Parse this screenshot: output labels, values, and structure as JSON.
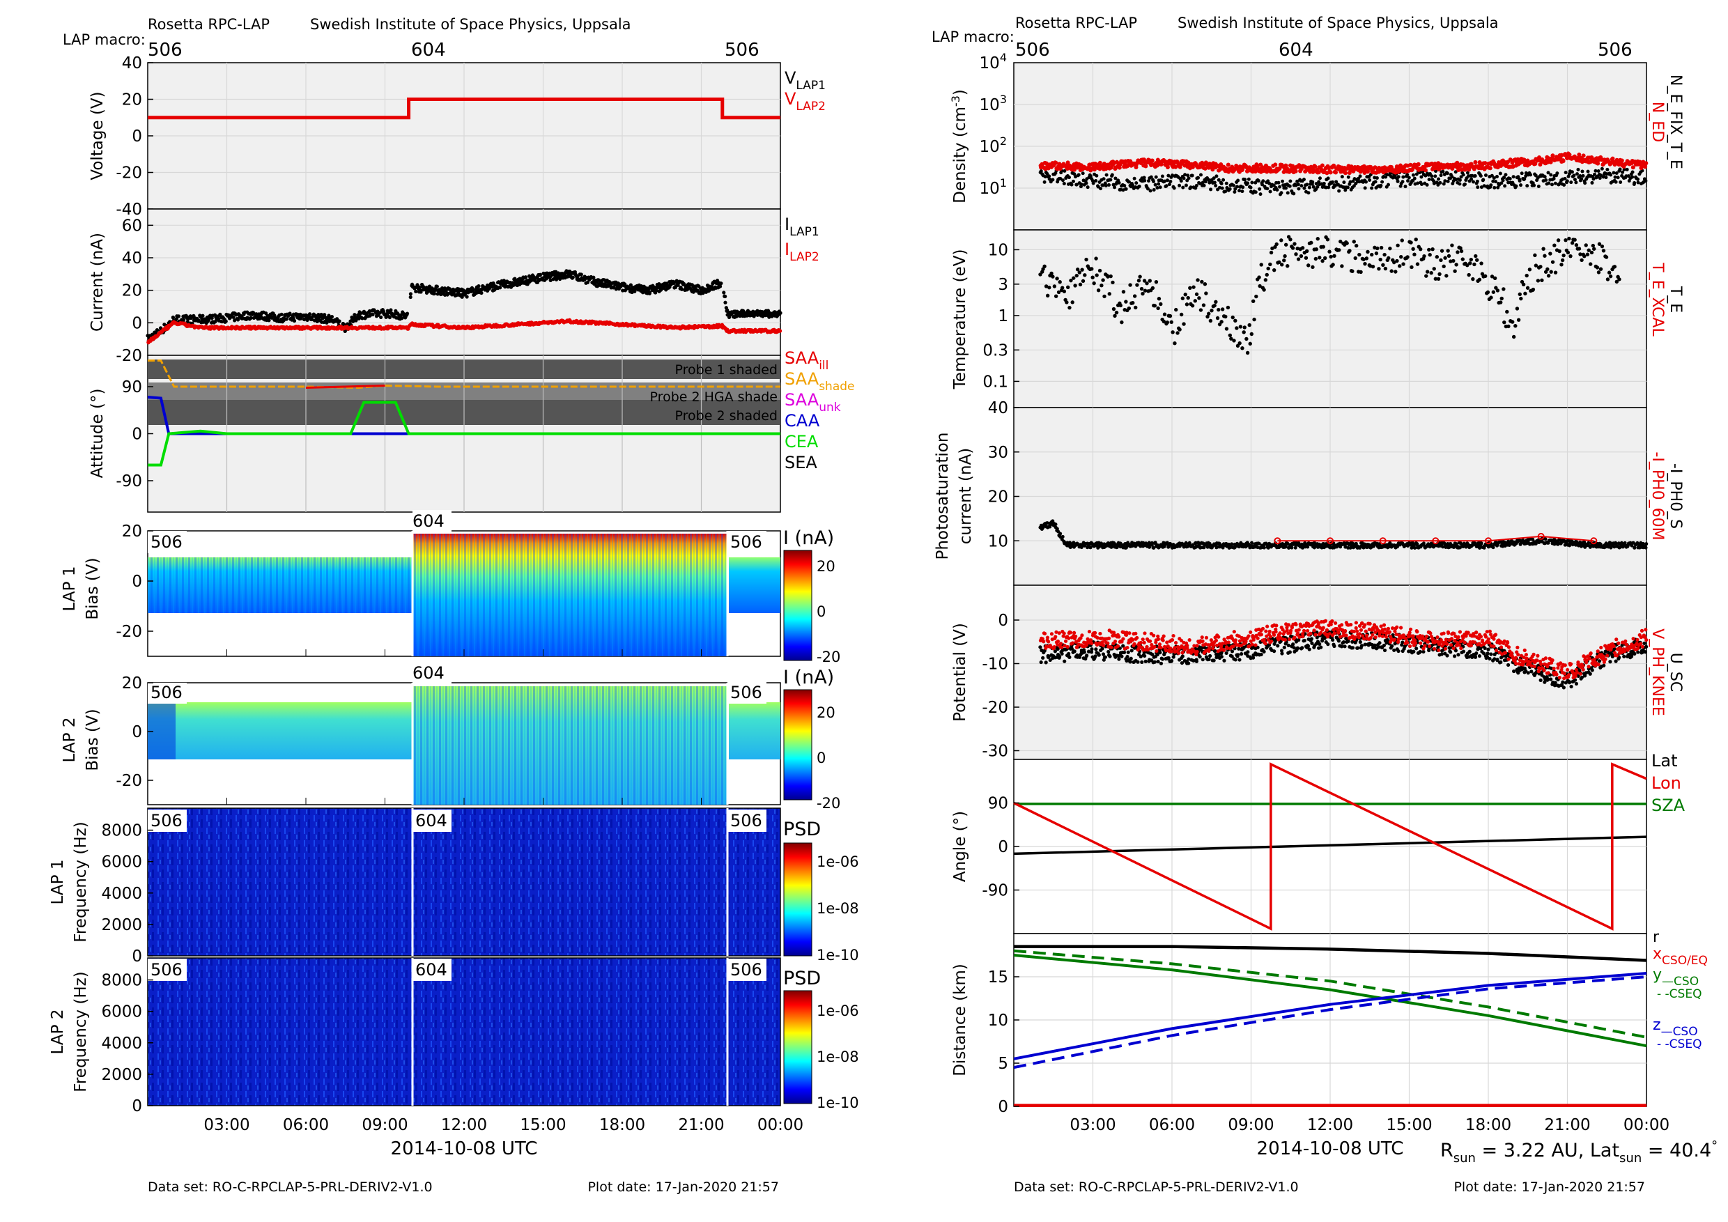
{
  "header": {
    "mission": "Rosetta RPC-LAP",
    "institute": "Swedish Institute of Space Physics, Uppsala",
    "macro_label": "LAP macro:",
    "macros": [
      "506",
      "604",
      "506"
    ]
  },
  "colors": {
    "panel_bg": "#f0f0f0",
    "grid": "#d8d8d8",
    "red": "#e60000",
    "black": "#000000",
    "orange": "#f0a000",
    "magenta": "#dd00dd",
    "blue": "#0000d0",
    "green": "#00dd00",
    "dark_green": "#007a00",
    "shade_dark": "#555555",
    "shade_mid": "#808080"
  },
  "left": {
    "time_ticks": [
      "03:00",
      "06:00",
      "09:00",
      "12:00",
      "15:00",
      "18:00",
      "21:00",
      "00:00"
    ],
    "xlabel": "2014-10-08 UTC",
    "footer_dataset": "Data set: RO-C-RPCLAP-5-PRL-DERIV2-V1.0",
    "footer_plotdate": "Plot date: 17-Jan-2020 21:57",
    "shade_labels": [
      "Probe 1 shaded",
      "Probe 2 HGA shade",
      "Probe 2 shaded"
    ],
    "colorbar_ticks_current": [
      "20",
      "0",
      "-20"
    ],
    "colorbar_ticks_psd": [
      "1e-06",
      "1e-08",
      "1e-10"
    ]
  },
  "right": {
    "time_ticks": [
      "03:00",
      "06:00",
      "09:00",
      "12:00",
      "15:00",
      "18:00",
      "21:00",
      "00:00"
    ],
    "xlabel": "2014-10-08 UTC",
    "footer_dataset": "Data set: RO-C-RPCLAP-5-PRL-DERIV2-V1.0",
    "footer_plotdate": "Plot date: 17-Jan-2020 21:57",
    "rsun_text": "R",
    "rsun_sub": "sun",
    "rsun_value": " = 3.22 AU, Lat",
    "lat_sub": "sun",
    "lat_value": " = 40.4",
    "degree": "°"
  },
  "chart_data": [
    {
      "type": "line",
      "panel": "Voltage (V)",
      "ylim": [
        -40,
        40
      ],
      "yticks": [
        "40",
        "20",
        "0",
        "-20",
        "-40"
      ],
      "legend": [
        {
          "text": "V",
          "sub": "LAP1",
          "color": "#000000"
        },
        {
          "text": "V",
          "sub": "LAP2",
          "color": "#e60000"
        }
      ],
      "series": [
        {
          "name": "V_LAP2",
          "x": [
            0,
            9.9,
            9.9,
            21.8,
            21.8,
            24
          ],
          "values": [
            10,
            10,
            20,
            20,
            10,
            10
          ]
        }
      ]
    },
    {
      "type": "scatter",
      "panel": "Current (nA)",
      "ylim": [
        -20,
        70
      ],
      "yticks": [
        "60",
        "40",
        "20",
        "0",
        "-20"
      ],
      "legend": [
        {
          "text": "I",
          "sub": "LAP1",
          "color": "#000000"
        },
        {
          "text": "I",
          "sub": "LAP2",
          "color": "#e60000"
        }
      ],
      "series": [
        {
          "name": "I_LAP1",
          "x": [
            0,
            0.5,
            1,
            2,
            3,
            4,
            5,
            6,
            7,
            7.5,
            8,
            9,
            9.9,
            10,
            11,
            12,
            13,
            14,
            15,
            16,
            17,
            18,
            19,
            20,
            21,
            21.8,
            22,
            23,
            24
          ],
          "values": [
            -10,
            -5,
            2,
            2,
            3,
            5,
            3,
            4,
            2,
            -3,
            5,
            6,
            4,
            22,
            20,
            18,
            22,
            25,
            28,
            30,
            25,
            22,
            20,
            24,
            20,
            25,
            5,
            6,
            5
          ]
        },
        {
          "name": "I_LAP2",
          "x": [
            0,
            0.5,
            1,
            2,
            4,
            6,
            8,
            9.9,
            10,
            12,
            14,
            16,
            18,
            20,
            21.8,
            22,
            24
          ],
          "values": [
            -12,
            -6,
            0,
            -3,
            -3,
            -3,
            -3,
            -3,
            -1,
            -3,
            -1,
            1,
            -1,
            -3,
            -2,
            -5,
            -5
          ]
        }
      ]
    },
    {
      "type": "line",
      "panel": "Attitude (°)",
      "ylim": [
        -150,
        150
      ],
      "yticks": [
        "90",
        "0",
        "-90"
      ],
      "legend": [
        {
          "text": "SAA",
          "sub": "ill",
          "color": "#e60000"
        },
        {
          "text": "SAA",
          "sub": "shade",
          "color": "#f0a000"
        },
        {
          "text": "SAA",
          "sub": "unk",
          "color": "#dd00dd"
        },
        {
          "text": "CAA",
          "sub": "",
          "color": "#0000d0"
        },
        {
          "text": "CEA",
          "sub": "",
          "color": "#00dd00"
        },
        {
          "text": "SEA",
          "sub": "",
          "color": "#000000"
        }
      ],
      "series": [
        {
          "name": "SAA",
          "x": [
            0,
            0.5,
            1,
            6,
            8,
            9,
            11,
            24
          ],
          "values": [
            170,
            165,
            90,
            90,
            88,
            92,
            90,
            90
          ]
        },
        {
          "name": "CAA",
          "x": [
            0,
            0.5,
            0.8,
            24
          ],
          "values": [
            70,
            68,
            0,
            0
          ]
        },
        {
          "name": "CEA",
          "x": [
            0,
            0.5,
            0.8,
            2,
            3,
            6,
            7.7,
            8.2,
            9.4,
            9.9,
            24
          ],
          "values": [
            -60,
            -60,
            0,
            5,
            0,
            0,
            0,
            60,
            60,
            0,
            0
          ]
        }
      ]
    },
    {
      "type": "heatmap",
      "panel": "LAP 1 Bias (V)",
      "ylim": [
        -30,
        20
      ],
      "yticks": [
        "20",
        "0",
        "-20"
      ],
      "colorbar_label": "I (nA)"
    },
    {
      "type": "heatmap",
      "panel": "LAP 2 Bias (V)",
      "ylim": [
        -30,
        20
      ],
      "yticks": [
        "20",
        "0",
        "-20"
      ],
      "colorbar_label": "I (nA)"
    },
    {
      "type": "heatmap",
      "panel": "LAP 1 Frequency (Hz)",
      "ylim": [
        0,
        9400
      ],
      "yticks": [
        "8000",
        "6000",
        "4000",
        "2000",
        "0"
      ],
      "colorbar_label": "PSD"
    },
    {
      "type": "heatmap",
      "panel": "LAP 2 Frequency (Hz)",
      "ylim": [
        0,
        9400
      ],
      "yticks": [
        "8000",
        "6000",
        "4000",
        "2000",
        "0"
      ],
      "colorbar_label": "PSD"
    },
    {
      "type": "scatter",
      "panel": "Density (cm-3)",
      "yscale": "log",
      "ylim": [
        1,
        10000
      ],
      "ytick_values": [
        10,
        100,
        1000,
        10000
      ],
      "legend": [
        {
          "text": "N_ED",
          "color": "#e60000"
        },
        {
          "text": "N_E_FIX_T_E",
          "color": "#000000"
        }
      ],
      "series": [
        {
          "name": "N_ED",
          "x": [
            1,
            3,
            5,
            7,
            8,
            10,
            12,
            14,
            16,
            18,
            20,
            21,
            23,
            24
          ],
          "values": [
            35,
            32,
            40,
            35,
            30,
            30,
            28,
            28,
            32,
            35,
            45,
            55,
            40,
            35
          ]
        },
        {
          "name": "N_E_FIX_T_E",
          "x": [
            1,
            3,
            5,
            7,
            8,
            10,
            12,
            14,
            16,
            18,
            20,
            22,
            24
          ],
          "values": [
            20,
            15,
            12,
            15,
            12,
            10,
            12,
            15,
            18,
            15,
            16,
            20,
            18
          ]
        }
      ]
    },
    {
      "type": "scatter",
      "panel": "Temperature (eV)",
      "yscale": "log",
      "ylim": [
        0.04,
        20
      ],
      "ytick_labels": [
        "10",
        "3",
        "1",
        "0.3",
        "0.1"
      ],
      "legend": [
        {
          "text": "T_E_XCAL",
          "color": "#e60000"
        },
        {
          "text": "T_E",
          "color": "#000000"
        }
      ],
      "series": [
        {
          "name": "T_E",
          "x": [
            1,
            2,
            3,
            4,
            5,
            6,
            7,
            8,
            9,
            10,
            11,
            12,
            13,
            14,
            15,
            16,
            17,
            18,
            19,
            20,
            21,
            22,
            23
          ],
          "values": [
            4,
            2,
            5,
            1,
            3,
            0.5,
            2,
            0.8,
            0.4,
            8,
            10,
            9,
            8,
            7,
            9,
            6,
            8,
            3,
            0.3,
            6,
            9,
            8,
            4
          ]
        }
      ]
    },
    {
      "type": "scatter",
      "panel": "Photosaturation current (nA)",
      "ylim": [
        0,
        40
      ],
      "yticks": [
        "40",
        "30",
        "20",
        "10"
      ],
      "legend": [
        {
          "text": "-I_PH0_60M",
          "color": "#e60000"
        },
        {
          "text": "-I_PH0_S",
          "color": "#000000"
        }
      ],
      "series": [
        {
          "name": "-I_PH0_S",
          "x": [
            1,
            1.5,
            2,
            4,
            6,
            8,
            10,
            12,
            14,
            16,
            18,
            20,
            22,
            24
          ],
          "values": [
            13,
            14,
            9,
            9,
            9,
            9,
            9,
            9,
            9,
            9,
            9,
            10,
            9,
            9
          ]
        },
        {
          "name": "-I_PH0_60M",
          "x": [
            10,
            12,
            14,
            16,
            18,
            20,
            22
          ],
          "values": [
            10,
            10,
            10,
            10,
            10,
            11,
            10
          ]
        }
      ]
    },
    {
      "type": "scatter",
      "panel": "Potential (V)",
      "ylim": [
        -32,
        8
      ],
      "yticks": [
        "0",
        "-10",
        "-20",
        "-30"
      ],
      "legend": [
        {
          "text": "V_PH_KNEE",
          "color": "#e60000"
        },
        {
          "text": "U_SC",
          "color": "#000000"
        }
      ],
      "series": [
        {
          "name": "U_SC",
          "x": [
            1,
            3,
            5,
            7,
            9,
            10,
            12,
            14,
            16,
            18,
            19,
            20,
            21,
            22,
            23,
            24
          ],
          "values": [
            -8,
            -7,
            -8,
            -8,
            -7,
            -6,
            -4,
            -5,
            -6,
            -7,
            -10,
            -12,
            -14,
            -10,
            -7,
            -6
          ]
        },
        {
          "name": "V_PH_KNEE",
          "x": [
            1,
            3,
            5,
            7,
            9,
            10,
            12,
            14,
            16,
            18,
            19,
            20,
            21,
            22,
            23,
            24
          ],
          "values": [
            -5,
            -4,
            -5,
            -6,
            -4,
            -3,
            -2,
            -3,
            -5,
            -4,
            -8,
            -10,
            -12,
            -9,
            -6,
            -4
          ]
        }
      ]
    },
    {
      "type": "line",
      "panel": "Angle (°)",
      "ylim": [
        -180,
        180
      ],
      "yticks": [
        "90",
        "0",
        "-90"
      ],
      "legend": [
        {
          "text": "Lat",
          "color": "#000000"
        },
        {
          "text": "Lon",
          "color": "#e60000"
        },
        {
          "text": "SZA",
          "color": "#007a00"
        }
      ],
      "series": [
        {
          "name": "Lat",
          "x": [
            0,
            24
          ],
          "values": [
            -15,
            20
          ]
        },
        {
          "name": "Lon",
          "x": [
            0,
            9.75,
            9.75,
            22.7,
            22.7,
            24
          ],
          "values": [
            90,
            -170,
            170,
            -170,
            170,
            140
          ]
        },
        {
          "name": "SZA",
          "x": [
            0,
            24
          ],
          "values": [
            88,
            88
          ]
        }
      ]
    },
    {
      "type": "line",
      "panel": "Distance (km)",
      "ylim": [
        0,
        20
      ],
      "yticks": [
        "15",
        "10",
        "5",
        "0"
      ],
      "legend": [
        {
          "text": "r",
          "sub": "",
          "color": "#000000"
        },
        {
          "text": "x",
          "sub": "CSO/EQ",
          "color": "#e60000"
        },
        {
          "text": "y",
          "sub": "—CSO",
          "color": "#007a00"
        },
        {
          "text": "",
          "sub": "- -CSEQ",
          "color": "#007a00"
        },
        {
          "text": "z",
          "sub": "—CSO",
          "color": "#0000d0"
        },
        {
          "text": "",
          "sub": "- -CSEQ",
          "color": "#0000d0"
        }
      ],
      "series": [
        {
          "name": "r",
          "x": [
            0,
            6,
            12,
            18,
            24
          ],
          "values": [
            18.5,
            18.5,
            18.2,
            17.7,
            16.9
          ]
        },
        {
          "name": "x",
          "x": [
            0,
            24
          ],
          "values": [
            0.1,
            0.1
          ]
        },
        {
          "name": "y CSO",
          "x": [
            0,
            6,
            12,
            18,
            24
          ],
          "values": [
            17.5,
            15.8,
            13.5,
            10.5,
            7.0
          ]
        },
        {
          "name": "y CSEQ",
          "x": [
            0,
            6,
            12,
            18,
            24
          ],
          "values": [
            18.0,
            16.5,
            14.5,
            11.5,
            8.0
          ]
        },
        {
          "name": "z CSO",
          "x": [
            0,
            6,
            12,
            18,
            24
          ],
          "values": [
            5.5,
            9.0,
            11.8,
            14.0,
            15.4
          ]
        },
        {
          "name": "z CSEQ",
          "x": [
            0,
            6,
            12,
            18,
            24
          ],
          "values": [
            4.5,
            8.2,
            11.2,
            13.6,
            15.0
          ]
        }
      ]
    }
  ]
}
